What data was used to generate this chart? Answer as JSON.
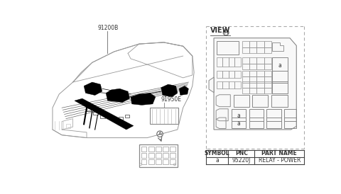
{
  "bg_color": "#ffffff",
  "label_91200B": "91200B",
  "label_91950E": "91950E",
  "label_view_A": "VIEW",
  "symbol_header": "SYMBOL",
  "pnc_header": "PNC",
  "partname_header": "PART NAME",
  "symbol_val": "a",
  "pnc_val": "95220J",
  "partname_val": "RELAY - POWER",
  "circled_A": "A",
  "line_color": "#666666",
  "box_color": "#888888",
  "dashed_color": "#aaaaaa",
  "text_color": "#333333",
  "table_line_color": "#444444"
}
